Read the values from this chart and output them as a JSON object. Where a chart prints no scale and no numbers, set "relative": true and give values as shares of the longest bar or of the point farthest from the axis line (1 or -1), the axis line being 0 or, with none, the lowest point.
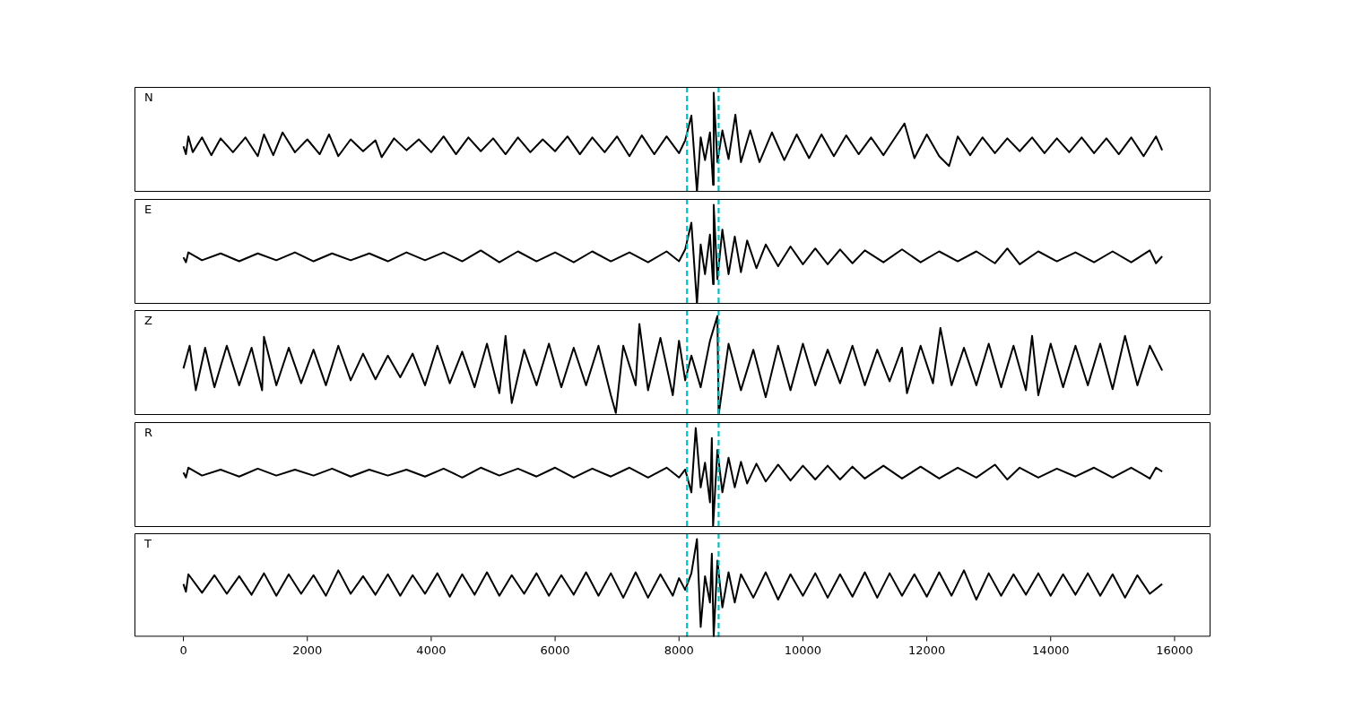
{
  "chart_data": [
    {
      "type": "line",
      "title": "N",
      "relative": true,
      "xlim": [
        -790,
        16580
      ],
      "xticks": [
        0,
        2000,
        4000,
        6000,
        8000,
        10000,
        12000,
        14000,
        16000
      ],
      "tick_labels": false,
      "grid": false,
      "legend": false,
      "line_style": "solid",
      "marker": "none",
      "x": [
        0,
        40,
        80,
        150,
        300,
        450,
        600,
        800,
        1000,
        1200,
        1300,
        1450,
        1600,
        1800,
        2000,
        2200,
        2350,
        2500,
        2700,
        2900,
        3100,
        3200,
        3400,
        3600,
        3800,
        4000,
        4200,
        4400,
        4600,
        4800,
        5000,
        5200,
        5400,
        5600,
        5800,
        6000,
        6200,
        6400,
        6600,
        6800,
        7000,
        7200,
        7400,
        7600,
        7800,
        8000,
        8100,
        8200,
        8290,
        8350,
        8420,
        8500,
        8550,
        8560,
        8620,
        8700,
        8800,
        8910,
        9000,
        9150,
        9300,
        9500,
        9700,
        9900,
        10100,
        10300,
        10500,
        10700,
        10900,
        11100,
        11300,
        11500,
        11640,
        11800,
        12000,
        12200,
        12360,
        12500,
        12700,
        12900,
        13100,
        13300,
        13500,
        13700,
        13900,
        14100,
        14300,
        14500,
        14700,
        14900,
        15100,
        15300,
        15500,
        15700,
        15800
      ],
      "series": [
        {
          "color": "#000000",
          "values": [
            0.46,
            0.38,
            0.56,
            0.4,
            0.55,
            0.37,
            0.54,
            0.4,
            0.55,
            0.36,
            0.58,
            0.37,
            0.6,
            0.4,
            0.53,
            0.38,
            0.58,
            0.36,
            0.53,
            0.41,
            0.52,
            0.35,
            0.54,
            0.42,
            0.53,
            0.4,
            0.56,
            0.38,
            0.55,
            0.41,
            0.54,
            0.38,
            0.55,
            0.4,
            0.53,
            0.41,
            0.56,
            0.38,
            0.55,
            0.4,
            0.56,
            0.36,
            0.57,
            0.38,
            0.56,
            0.39,
            0.52,
            0.77,
            0.0,
            0.55,
            0.32,
            0.6,
            0.07,
            1.0,
            0.3,
            0.62,
            0.33,
            0.78,
            0.3,
            0.62,
            0.3,
            0.6,
            0.32,
            0.58,
            0.34,
            0.58,
            0.36,
            0.57,
            0.38,
            0.55,
            0.37,
            0.56,
            0.69,
            0.34,
            0.58,
            0.36,
            0.26,
            0.56,
            0.37,
            0.55,
            0.39,
            0.54,
            0.41,
            0.55,
            0.39,
            0.54,
            0.4,
            0.55,
            0.39,
            0.54,
            0.38,
            0.55,
            0.36,
            0.56,
            0.42
          ]
        }
      ],
      "ref_lines": [
        {
          "axis": "x",
          "value": 8130,
          "color": "#00bfbf",
          "line_style": "dashed"
        },
        {
          "axis": "x",
          "value": 8640,
          "color": "#00bfbf",
          "line_style": "dashed"
        }
      ]
    },
    {
      "type": "line",
      "title": "E",
      "relative": true,
      "xlim": [
        -790,
        16580
      ],
      "xticks": [
        0,
        2000,
        4000,
        6000,
        8000,
        10000,
        12000,
        14000,
        16000
      ],
      "tick_labels": false,
      "grid": false,
      "legend": false,
      "line_style": "solid",
      "marker": "none",
      "x": [
        0,
        40,
        80,
        300,
        600,
        900,
        1200,
        1500,
        1800,
        2100,
        2400,
        2700,
        3000,
        3300,
        3600,
        3900,
        4200,
        4500,
        4800,
        5100,
        5400,
        5700,
        6000,
        6300,
        6600,
        6900,
        7200,
        7500,
        7800,
        8000,
        8100,
        8200,
        8290,
        8350,
        8420,
        8500,
        8550,
        8560,
        8620,
        8700,
        8800,
        8900,
        9000,
        9100,
        9250,
        9400,
        9600,
        9800,
        10000,
        10200,
        10400,
        10600,
        10800,
        11000,
        11300,
        11600,
        11900,
        12200,
        12500,
        12800,
        13100,
        13300,
        13500,
        13800,
        14100,
        14400,
        14700,
        15000,
        15300,
        15600,
        15700,
        15800
      ],
      "series": [
        {
          "color": "#000000",
          "values": [
            0.47,
            0.42,
            0.52,
            0.44,
            0.51,
            0.43,
            0.51,
            0.44,
            0.52,
            0.43,
            0.51,
            0.44,
            0.51,
            0.43,
            0.52,
            0.44,
            0.52,
            0.43,
            0.54,
            0.42,
            0.53,
            0.43,
            0.52,
            0.42,
            0.53,
            0.43,
            0.52,
            0.42,
            0.53,
            0.43,
            0.55,
            0.82,
            0.0,
            0.6,
            0.3,
            0.7,
            0.2,
            1.0,
            0.25,
            0.75,
            0.3,
            0.68,
            0.32,
            0.64,
            0.36,
            0.6,
            0.38,
            0.58,
            0.4,
            0.56,
            0.4,
            0.55,
            0.41,
            0.54,
            0.42,
            0.55,
            0.42,
            0.53,
            0.43,
            0.53,
            0.41,
            0.56,
            0.4,
            0.53,
            0.43,
            0.52,
            0.42,
            0.53,
            0.42,
            0.54,
            0.41,
            0.48
          ]
        }
      ],
      "ref_lines": [
        {
          "axis": "x",
          "value": 8130,
          "color": "#00bfbf",
          "line_style": "dashed"
        },
        {
          "axis": "x",
          "value": 8640,
          "color": "#00bfbf",
          "line_style": "dashed"
        }
      ]
    },
    {
      "type": "line",
      "title": "Z",
      "relative": true,
      "xlim": [
        -790,
        16580
      ],
      "xticks": [
        0,
        2000,
        4000,
        6000,
        8000,
        10000,
        12000,
        14000,
        16000
      ],
      "tick_labels": false,
      "grid": false,
      "legend": false,
      "line_style": "solid",
      "marker": "none",
      "x": [
        0,
        100,
        200,
        350,
        500,
        700,
        900,
        1100,
        1270,
        1300,
        1500,
        1700,
        1900,
        2100,
        2300,
        2500,
        2700,
        2900,
        3100,
        3300,
        3500,
        3700,
        3900,
        4100,
        4300,
        4500,
        4700,
        4900,
        5100,
        5200,
        5300,
        5500,
        5700,
        5900,
        6100,
        6300,
        6500,
        6700,
        6900,
        6980,
        7100,
        7300,
        7360,
        7500,
        7700,
        7900,
        8000,
        8100,
        8200,
        8350,
        8500,
        8620,
        8640,
        8800,
        9000,
        9200,
        9400,
        9600,
        9800,
        10000,
        10200,
        10400,
        10600,
        10800,
        11000,
        11200,
        11400,
        11600,
        11680,
        11900,
        12100,
        12220,
        12400,
        12600,
        12800,
        13000,
        13200,
        13400,
        13600,
        13700,
        13800,
        14000,
        14200,
        14400,
        14600,
        14800,
        15000,
        15200,
        15400,
        15600,
        15800
      ],
      "series": [
        {
          "color": "#000000",
          "values": [
            0.47,
            0.7,
            0.25,
            0.68,
            0.28,
            0.7,
            0.3,
            0.68,
            0.25,
            0.79,
            0.3,
            0.68,
            0.32,
            0.66,
            0.3,
            0.7,
            0.35,
            0.62,
            0.36,
            0.6,
            0.38,
            0.62,
            0.3,
            0.7,
            0.32,
            0.64,
            0.28,
            0.72,
            0.22,
            0.8,
            0.12,
            0.66,
            0.3,
            0.72,
            0.28,
            0.68,
            0.3,
            0.7,
            0.2,
            0.02,
            0.7,
            0.3,
            0.92,
            0.25,
            0.78,
            0.2,
            0.75,
            0.35,
            0.6,
            0.28,
            0.75,
            1.0,
            0.0,
            0.72,
            0.25,
            0.66,
            0.18,
            0.7,
            0.25,
            0.72,
            0.3,
            0.66,
            0.32,
            0.7,
            0.3,
            0.66,
            0.34,
            0.68,
            0.22,
            0.7,
            0.32,
            0.88,
            0.3,
            0.68,
            0.3,
            0.72,
            0.28,
            0.7,
            0.25,
            0.8,
            0.2,
            0.72,
            0.28,
            0.7,
            0.3,
            0.72,
            0.26,
            0.8,
            0.3,
            0.7,
            0.45
          ]
        }
      ],
      "ref_lines": [
        {
          "axis": "x",
          "value": 8130,
          "color": "#00bfbf",
          "line_style": "dashed"
        },
        {
          "axis": "x",
          "value": 8640,
          "color": "#00bfbf",
          "line_style": "dashed"
        }
      ]
    },
    {
      "type": "line",
      "title": "R",
      "relative": true,
      "xlim": [
        -790,
        16580
      ],
      "xticks": [
        0,
        2000,
        4000,
        6000,
        8000,
        10000,
        12000,
        14000,
        16000
      ],
      "tick_labels": false,
      "grid": false,
      "legend": false,
      "line_style": "solid",
      "marker": "none",
      "x": [
        0,
        40,
        80,
        300,
        600,
        900,
        1200,
        1500,
        1800,
        2100,
        2400,
        2700,
        3000,
        3300,
        3600,
        3900,
        4200,
        4500,
        4800,
        5100,
        5400,
        5700,
        6000,
        6300,
        6600,
        6900,
        7200,
        7500,
        7800,
        8000,
        8100,
        8200,
        8270,
        8350,
        8420,
        8500,
        8530,
        8550,
        8620,
        8700,
        8800,
        8900,
        9000,
        9100,
        9250,
        9400,
        9600,
        9800,
        10000,
        10200,
        10400,
        10600,
        10800,
        11000,
        11300,
        11600,
        11900,
        12200,
        12500,
        12800,
        13100,
        13300,
        13500,
        13800,
        14100,
        14400,
        14700,
        15000,
        15300,
        15600,
        15700,
        15800
      ],
      "series": [
        {
          "color": "#000000",
          "values": [
            0.55,
            0.5,
            0.6,
            0.52,
            0.58,
            0.51,
            0.59,
            0.52,
            0.58,
            0.52,
            0.59,
            0.51,
            0.58,
            0.52,
            0.58,
            0.51,
            0.59,
            0.5,
            0.6,
            0.52,
            0.59,
            0.51,
            0.6,
            0.5,
            0.59,
            0.51,
            0.6,
            0.5,
            0.6,
            0.5,
            0.58,
            0.35,
            1.0,
            0.4,
            0.65,
            0.25,
            0.9,
            0.0,
            0.78,
            0.35,
            0.7,
            0.4,
            0.66,
            0.44,
            0.64,
            0.46,
            0.63,
            0.47,
            0.62,
            0.48,
            0.62,
            0.48,
            0.61,
            0.49,
            0.62,
            0.49,
            0.61,
            0.49,
            0.6,
            0.5,
            0.63,
            0.48,
            0.6,
            0.5,
            0.59,
            0.51,
            0.6,
            0.5,
            0.6,
            0.49,
            0.6,
            0.56
          ]
        }
      ],
      "ref_lines": [
        {
          "axis": "x",
          "value": 8130,
          "color": "#00bfbf",
          "line_style": "dashed"
        },
        {
          "axis": "x",
          "value": 8640,
          "color": "#00bfbf",
          "line_style": "dashed"
        }
      ]
    },
    {
      "type": "line",
      "title": "T",
      "relative": true,
      "xlim": [
        -790,
        16580
      ],
      "xticks": [
        0,
        2000,
        4000,
        6000,
        8000,
        10000,
        12000,
        14000,
        16000
      ],
      "tick_labels": "x",
      "grid": false,
      "legend": false,
      "line_style": "solid",
      "marker": "none",
      "x": [
        0,
        40,
        80,
        300,
        500,
        700,
        900,
        1100,
        1300,
        1500,
        1700,
        1900,
        2100,
        2300,
        2500,
        2700,
        2900,
        3100,
        3300,
        3500,
        3700,
        3900,
        4100,
        4300,
        4500,
        4700,
        4900,
        5100,
        5300,
        5500,
        5700,
        5900,
        6100,
        6300,
        6500,
        6700,
        6900,
        7100,
        7300,
        7500,
        7700,
        7900,
        8000,
        8100,
        8200,
        8290,
        8350,
        8420,
        8500,
        8530,
        8560,
        8620,
        8700,
        8800,
        8900,
        9000,
        9200,
        9400,
        9600,
        9800,
        10000,
        10200,
        10400,
        10600,
        10800,
        11000,
        11200,
        11400,
        11600,
        11800,
        12000,
        12200,
        12400,
        12600,
        12800,
        13000,
        13200,
        13400,
        13600,
        13800,
        14000,
        14200,
        14400,
        14600,
        14800,
        15000,
        15200,
        15400,
        15600,
        15800
      ],
      "series": [
        {
          "color": "#000000",
          "values": [
            0.54,
            0.46,
            0.64,
            0.45,
            0.63,
            0.44,
            0.62,
            0.43,
            0.65,
            0.42,
            0.64,
            0.44,
            0.63,
            0.42,
            0.68,
            0.44,
            0.62,
            0.43,
            0.64,
            0.42,
            0.63,
            0.44,
            0.65,
            0.41,
            0.64,
            0.43,
            0.66,
            0.42,
            0.63,
            0.44,
            0.65,
            0.42,
            0.63,
            0.43,
            0.66,
            0.42,
            0.65,
            0.4,
            0.66,
            0.4,
            0.64,
            0.42,
            0.6,
            0.48,
            0.65,
            1.0,
            0.1,
            0.62,
            0.35,
            0.85,
            0.0,
            0.78,
            0.3,
            0.66,
            0.35,
            0.64,
            0.4,
            0.66,
            0.38,
            0.64,
            0.42,
            0.65,
            0.4,
            0.64,
            0.41,
            0.66,
            0.4,
            0.65,
            0.42,
            0.64,
            0.41,
            0.66,
            0.42,
            0.68,
            0.38,
            0.65,
            0.42,
            0.64,
            0.43,
            0.65,
            0.42,
            0.64,
            0.43,
            0.65,
            0.42,
            0.64,
            0.4,
            0.63,
            0.44,
            0.54
          ]
        }
      ],
      "ref_lines": [
        {
          "axis": "x",
          "value": 8130,
          "color": "#00bfbf",
          "line_style": "dashed"
        },
        {
          "axis": "x",
          "value": 8640,
          "color": "#00bfbf",
          "line_style": "dashed"
        }
      ]
    }
  ]
}
